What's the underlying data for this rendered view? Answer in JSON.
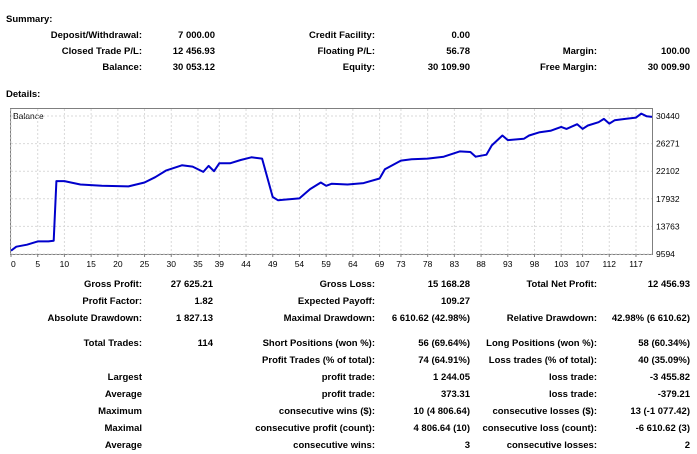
{
  "summary": {
    "heading": "Summary:",
    "rows": [
      {
        "l1": "Deposit/Withdrawal:",
        "v1": "7 000.00",
        "l2": "Credit Facility:",
        "v2": "0.00",
        "l3": "",
        "v3": ""
      },
      {
        "l1": "Closed Trade P/L:",
        "v1": "12 456.93",
        "l2": "Floating P/L:",
        "v2": "56.78",
        "l3": "Margin:",
        "v3": "100.00"
      },
      {
        "l1": "Balance:",
        "v1": "30 053.12",
        "l2": "Equity:",
        "v2": "30 109.90",
        "l3": "Free Margin:",
        "v3": "30 009.90"
      }
    ]
  },
  "details": {
    "heading": "Details:",
    "rows_a": [
      {
        "l1": "Gross Profit:",
        "v1": "27 625.21",
        "l2": "Gross Loss:",
        "v2": "15 168.28",
        "l3": "Total Net Profit:",
        "v3": "12 456.93"
      },
      {
        "l1": "Profit Factor:",
        "v1": "1.82",
        "l2": "Expected Payoff:",
        "v2": "109.27",
        "l3": "",
        "v3": ""
      },
      {
        "l1": "Absolute Drawdown:",
        "v1": "1 827.13",
        "l2": "Maximal Drawdown:",
        "v2": "6 610.62 (42.98%)",
        "l3": "Relative Drawdown:",
        "v3": "42.98% (6 610.62)"
      }
    ],
    "rows_b": [
      {
        "l1": "Total Trades:",
        "v1": "114",
        "l2": "Short Positions (won %):",
        "v2": "56 (69.64%)",
        "l3": "Long Positions (won %):",
        "v3": "58 (60.34%)"
      },
      {
        "l1": "",
        "v1": "",
        "l2": "Profit Trades (% of total):",
        "v2": "74 (64.91%)",
        "l3": "Loss trades (% of total):",
        "v3": "40 (35.09%)"
      },
      {
        "l1": "Largest",
        "v1": "",
        "l2": "profit trade:",
        "v2": "1 244.05",
        "l3": "loss trade:",
        "v3": "-3 455.82"
      },
      {
        "l1": "Average",
        "v1": "",
        "l2": "profit trade:",
        "v2": "373.31",
        "l3": "loss trade:",
        "v3": "-379.21"
      },
      {
        "l1": "Maximum",
        "v1": "",
        "l2": "consecutive wins ($):",
        "v2": "10 (4 806.64)",
        "l3": "consecutive losses ($):",
        "v3": "13 (-1 077.42)"
      },
      {
        "l1": "Maximal",
        "v1": "",
        "l2": "consecutive profit (count):",
        "v2": "4 806.64 (10)",
        "l3": "consecutive loss (count):",
        "v3": "-6 610.62 (3)"
      },
      {
        "l1": "Average",
        "v1": "",
        "l2": "consecutive wins:",
        "v2": "3",
        "l3": "consecutive losses:",
        "v3": "2"
      }
    ]
  },
  "chart_data": {
    "type": "line",
    "legend": "Balance",
    "line_color": "#0000cc",
    "grid": true,
    "xlim": [
      0,
      120
    ],
    "ylim": [
      9594,
      31500
    ],
    "x_ticks": [
      0,
      5,
      10,
      15,
      20,
      25,
      30,
      35,
      39,
      44,
      49,
      54,
      59,
      64,
      69,
      73,
      78,
      83,
      88,
      93,
      98,
      103,
      107,
      112,
      117
    ],
    "y_ticks": [
      30440,
      26271,
      22102,
      17932,
      13763,
      9594
    ],
    "series": [
      {
        "name": "Balance",
        "x": [
          0,
          1,
          3,
          5,
          7,
          8,
          8.5,
          10,
          13,
          17,
          22,
          25,
          27,
          29,
          32,
          34,
          36,
          37,
          38,
          39,
          41,
          43,
          45,
          47,
          49,
          50,
          51,
          54,
          56,
          58,
          59,
          60,
          63,
          66,
          69,
          70,
          73,
          75,
          78,
          81,
          84,
          86,
          87,
          89,
          90,
          92,
          93,
          96,
          97,
          99,
          101,
          103,
          104,
          106,
          107,
          108,
          110,
          111,
          112,
          113,
          115,
          117,
          118,
          119,
          120
        ],
        "y": [
          10100,
          10700,
          11000,
          11500,
          11500,
          11600,
          20600,
          20600,
          20100,
          19900,
          19800,
          20400,
          21200,
          22200,
          23000,
          22800,
          22000,
          22900,
          22100,
          23300,
          23300,
          23800,
          24200,
          24000,
          18200,
          17700,
          17800,
          18000,
          19400,
          20400,
          19900,
          20200,
          20100,
          20300,
          21000,
          22400,
          23700,
          23900,
          24000,
          24300,
          25100,
          25000,
          24300,
          24600,
          26000,
          27500,
          26800,
          27000,
          27500,
          28000,
          28200,
          28800,
          28500,
          29200,
          28500,
          29000,
          29500,
          30000,
          29300,
          29800,
          30000,
          30200,
          30800,
          30400,
          30300
        ]
      }
    ]
  }
}
